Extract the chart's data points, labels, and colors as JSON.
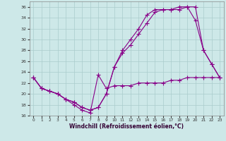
{
  "xlabel": "Windchill (Refroidissement éolien,°C)",
  "background_color": "#cde8e8",
  "grid_color": "#aacccc",
  "line_color": "#880088",
  "xlim": [
    -0.5,
    23.5
  ],
  "ylim": [
    16,
    37
  ],
  "xticks": [
    0,
    1,
    2,
    3,
    4,
    5,
    6,
    7,
    8,
    9,
    10,
    11,
    12,
    13,
    14,
    15,
    16,
    17,
    18,
    19,
    20,
    21,
    22,
    23
  ],
  "yticks": [
    16,
    18,
    20,
    22,
    24,
    26,
    28,
    30,
    32,
    34,
    36
  ],
  "line1_x": [
    0,
    1,
    2,
    3,
    4,
    5,
    6,
    7,
    8,
    9,
    10,
    11,
    12,
    13,
    14,
    15,
    16,
    17,
    18,
    19,
    20,
    21,
    22,
    23
  ],
  "line1_y": [
    23,
    21,
    20.5,
    20,
    19,
    18,
    17,
    16.5,
    23.5,
    21,
    21.5,
    21.5,
    21.5,
    22,
    22,
    22,
    22,
    22.5,
    22.5,
    23,
    23,
    23,
    23,
    23
  ],
  "line2_x": [
    0,
    1,
    2,
    3,
    4,
    5,
    6,
    7,
    8,
    9,
    10,
    11,
    12,
    13,
    14,
    15,
    16,
    17,
    18,
    19,
    20,
    21,
    22,
    23
  ],
  "line2_y": [
    23,
    21,
    20.5,
    20,
    19,
    18.5,
    17.5,
    17,
    17.5,
    20,
    25,
    27.5,
    29,
    31,
    33,
    35,
    35.5,
    35.5,
    35.5,
    36,
    33.5,
    28,
    25.5,
    23
  ],
  "line3_x": [
    0,
    1,
    2,
    3,
    4,
    5,
    6,
    7,
    8,
    9,
    10,
    11,
    12,
    13,
    14,
    15,
    16,
    17,
    18,
    19,
    20,
    21,
    22,
    23
  ],
  "line3_y": [
    23,
    21,
    20.5,
    20,
    19,
    18.5,
    17.5,
    17,
    17.5,
    20,
    25,
    28,
    30,
    32,
    34.5,
    35.5,
    35.5,
    35.5,
    36,
    36,
    36,
    28,
    25.5,
    23
  ],
  "marker": "+",
  "markersize": 4,
  "linewidth": 0.8
}
